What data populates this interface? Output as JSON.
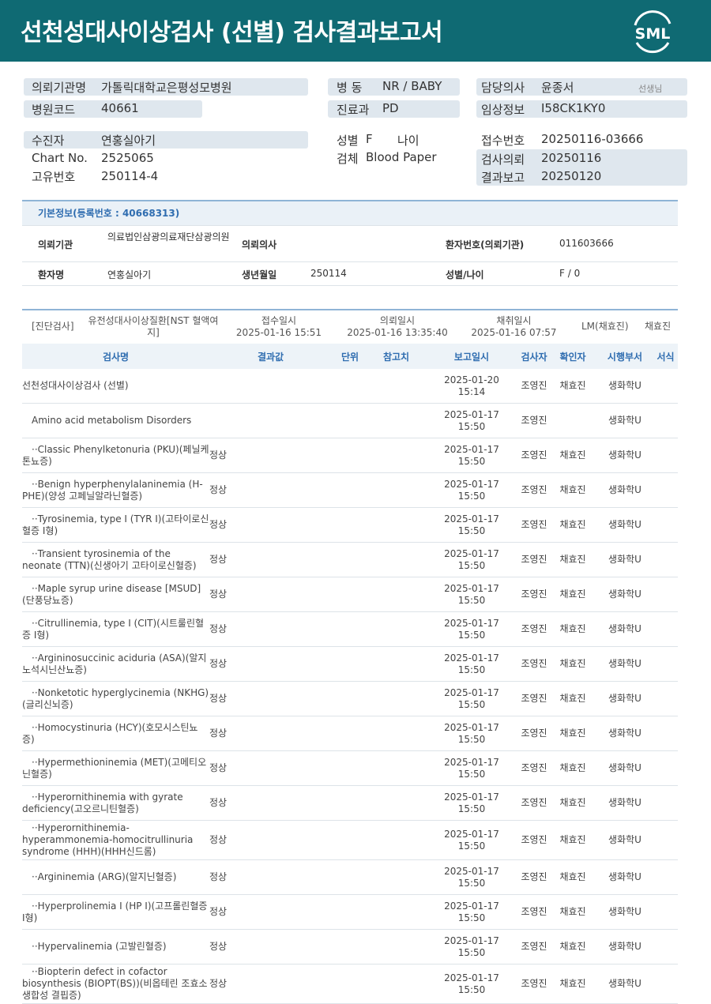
{
  "header": {
    "title": "선천성대사이상검사 (선별) 검사결과보고서",
    "logo": "SML"
  },
  "info": {
    "institution": {
      "label": "의뢰기관명",
      "value": "가톨릭대학교은평성모병원"
    },
    "hospital_code": {
      "label": "병원코드",
      "value": "40661"
    },
    "patient": {
      "label": "수진자",
      "value": "연홍실아기"
    },
    "chart_no": {
      "label": "Chart No.",
      "value": "2525065"
    },
    "unique_no": {
      "label": "고유번호",
      "value": "250114-4"
    },
    "ward": {
      "label": "병 동",
      "value": "NR / BABY"
    },
    "department": {
      "label": "진료과",
      "value": "PD"
    },
    "sex": {
      "label": "성별",
      "value": "F"
    },
    "age": {
      "label": "나이"
    },
    "specimen": {
      "label": "검체",
      "value": "Blood Paper"
    },
    "doctor": {
      "label": "담당의사",
      "value": "윤종서",
      "suffix": "선생님"
    },
    "clinical": {
      "label": "임상정보",
      "value": "I58CK1KY0"
    },
    "receipt_no": {
      "label": "접수번호",
      "value": "20250116-03666"
    },
    "request": {
      "label": "검사의뢰",
      "value": "20250116"
    },
    "report": {
      "label": "결과보고",
      "value": "20250120"
    }
  },
  "basic": {
    "title": "기본정보(등록번호 : 40668313)",
    "institution": {
      "label": "의뢰기관",
      "value": "의료법인삼광의료재단삼광의원"
    },
    "doctor": {
      "label": "의뢰의사"
    },
    "patient_no": {
      "label": "환자번호(의뢰기관)",
      "value": "011603666"
    },
    "name": {
      "label": "환자명",
      "value": "연홍실아기"
    },
    "birth": {
      "label": "생년월일",
      "value": "250114"
    },
    "sex_age": {
      "label": "성별/나이",
      "value": "F / 0"
    }
  },
  "tests": {
    "category": "[진단검사]",
    "group": "유전성대사이상질환[NST 혈액여지]",
    "received": {
      "label": "접수일시",
      "value": "2025-01-16 15:51"
    },
    "requested": {
      "label": "의뢰일시",
      "value": "2025-01-16 13:35:40"
    },
    "collected": {
      "label": "채취일시",
      "value": "2025-01-16 07:57"
    },
    "lab": "LM(채효진)",
    "person": "채효진",
    "columns": [
      "검사명",
      "결과값",
      "단위",
      "참고치",
      "보고일시",
      "검사자",
      "확인자",
      "시행부서",
      "서식"
    ],
    "rows": [
      {
        "name": "선천성대사이상검사 (선별)",
        "date": "2025-01-20",
        "time": "15:14",
        "tester": "조영진",
        "confirmer": "채효진",
        "dept": "생화학U"
      },
      {
        "name": "Amino acid metabolism Disorders",
        "date": "2025-01-17",
        "time": "15:50",
        "tester": "조영진",
        "dept": "생화학U"
      },
      {
        "name": "··Classic Phenylketonuria (PKU)(페닐케톤뇨증)",
        "result": "정상",
        "date": "2025-01-17",
        "time": "15:50",
        "tester": "조영진",
        "confirmer": "채효진",
        "dept": "생화학U"
      },
      {
        "name": "··Benign hyperphenylalaninemia (H-PHE)(양성 고페닐알라닌혈증)",
        "result": "정상",
        "date": "2025-01-17",
        "time": "15:50",
        "tester": "조영진",
        "confirmer": "채효진",
        "dept": "생화학U"
      },
      {
        "name": "··Tyrosinemia, type I (TYR I)(고타이로신혈증 I형)",
        "result": "정상",
        "date": "2025-01-17",
        "time": "15:50",
        "tester": "조영진",
        "confirmer": "채효진",
        "dept": "생화학U"
      },
      {
        "name": "··Transient tyrosinemia of the neonate (TTN)(신생아기 고타이로신혈증)",
        "result": "정상",
        "date": "2025-01-17",
        "time": "15:50",
        "tester": "조영진",
        "confirmer": "채효진",
        "dept": "생화학U"
      },
      {
        "name": "··Maple syrup urine disease [MSUD](단풍당뇨증)",
        "result": "정상",
        "date": "2025-01-17",
        "time": "15:50",
        "tester": "조영진",
        "confirmer": "채효진",
        "dept": "생화학U"
      },
      {
        "name": "··Citrullinemia, type I (CIT)(시트룰린혈증 I형)",
        "result": "정상",
        "date": "2025-01-17",
        "time": "15:50",
        "tester": "조영진",
        "confirmer": "채효진",
        "dept": "생화학U"
      },
      {
        "name": "··Argininosuccinic aciduria (ASA)(알지노석시닌산뇨증)",
        "result": "정상",
        "date": "2025-01-17",
        "time": "15:50",
        "tester": "조영진",
        "confirmer": "채효진",
        "dept": "생화학U"
      },
      {
        "name": "··Nonketotic hyperglycinemia (NKHG)(글리신뇌증)",
        "result": "정상",
        "date": "2025-01-17",
        "time": "15:50",
        "tester": "조영진",
        "confirmer": "채효진",
        "dept": "생화학U"
      },
      {
        "name": "··Homocystinuria (HCY)(호모시스틴뇨증)",
        "result": "정상",
        "date": "2025-01-17",
        "time": "15:50",
        "tester": "조영진",
        "confirmer": "채효진",
        "dept": "생화학U"
      },
      {
        "name": "··Hypermethioninemia (MET)(고메티오닌혈증)",
        "result": "정상",
        "date": "2025-01-17",
        "time": "15:50",
        "tester": "조영진",
        "confirmer": "채효진",
        "dept": "생화학U"
      },
      {
        "name": "··Hyperornithinemia with gyrate deficiency(고오르니틴혈증)",
        "result": "정상",
        "date": "2025-01-17",
        "time": "15:50",
        "tester": "조영진",
        "confirmer": "채효진",
        "dept": "생화학U"
      },
      {
        "name": "··Hyperornithinemia-hyperammonemia-homocitrullinuria syndrome (HHH)(HHH신드롬)",
        "result": "정상",
        "date": "2025-01-17",
        "time": "15:50",
        "tester": "조영진",
        "confirmer": "채효진",
        "dept": "생화학U"
      },
      {
        "name": "··Argininemia (ARG)(알지닌혈증)",
        "result": "정상",
        "date": "2025-01-17",
        "time": "15:50",
        "tester": "조영진",
        "confirmer": "채효진",
        "dept": "생화학U"
      },
      {
        "name": "··Hyperprolinemia I (HP I)(고프롤린혈증 I형)",
        "result": "정상",
        "date": "2025-01-17",
        "time": "15:50",
        "tester": "조영진",
        "confirmer": "채효진",
        "dept": "생화학U"
      },
      {
        "name": "··Hypervalinemia (고발린혈증)",
        "result": "정상",
        "date": "2025-01-17",
        "time": "15:50",
        "tester": "조영진",
        "confirmer": "채효진",
        "dept": "생화학U"
      },
      {
        "name": "··Biopterin defect in cofactor biosynthesis (BIOPT(BS))(비옵테린 조효소 생합성 결핍증)",
        "result": "정상",
        "date": "2025-01-17",
        "time": "15:50",
        "tester": "조영진",
        "confirmer": "채효진",
        "dept": "생화학U"
      }
    ]
  }
}
